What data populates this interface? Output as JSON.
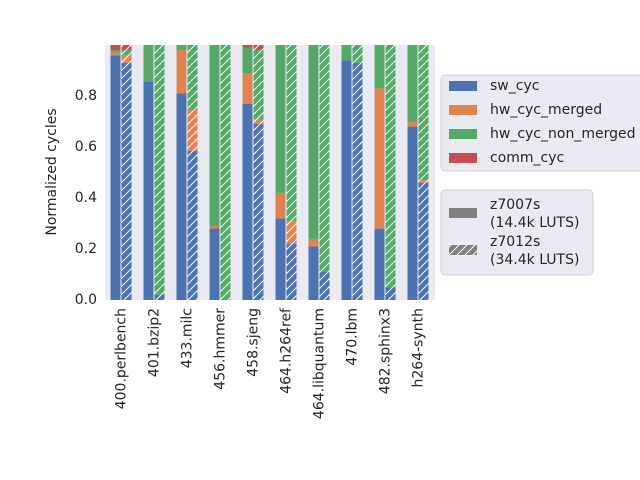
{
  "chart_data": {
    "type": "grouped_stacked_bar",
    "y_label": "Normalized cycles",
    "categories": [
      "400.perlbench",
      "401.bzip2",
      "433.milc",
      "456.hmmer",
      "458.sjeng",
      "464.h264ref",
      "464.libquantum",
      "470.lbm",
      "482.sphinx3",
      "h264-synth"
    ],
    "configs": [
      {
        "label": [
          "z7007s",
          "(14.4k LUTS)"
        ],
        "hatch": false,
        "color": "#808080"
      },
      {
        "label": [
          "z7012s",
          "(34.4k LUTS)"
        ],
        "hatch": true,
        "color": "#808080"
      }
    ],
    "series": [
      {
        "name": "sw_cyc",
        "color": "#4c72b0",
        "values": [
          [
            0.96,
            0.855,
            0.81,
            0.28,
            0.77,
            0.32,
            0.21,
            0.94,
            0.28,
            0.68
          ],
          [
            0.93,
            0.02,
            0.585,
            0,
            0.69,
            0.22,
            0.11,
            0.93,
            0.05,
            0.46
          ]
        ]
      },
      {
        "name": "hw_cyc_merged",
        "color": "#dd8452",
        "values": [
          [
            0.01,
            0,
            0.17,
            0.01,
            0.12,
            0.1,
            0.03,
            0,
            0.55,
            0.02
          ],
          [
            0.03,
            0,
            0.16,
            0,
            0.02,
            0.09,
            0,
            0,
            0,
            0.01
          ]
        ]
      },
      {
        "name": "hw_cyc_non_merged",
        "color": "#55a868",
        "values": [
          [
            0.01,
            0.145,
            0.02,
            0.71,
            0.1,
            0.58,
            0.76,
            0.06,
            0.17,
            0.3
          ],
          [
            0.02,
            0.98,
            0.255,
            1.0,
            0.27,
            0.69,
            0.89,
            0.07,
            0.95,
            0.53
          ]
        ]
      },
      {
        "name": "comm_cyc",
        "color": "#c44e52",
        "values": [
          [
            0.02,
            0,
            0,
            0,
            0.01,
            0,
            0,
            0,
            0,
            0
          ],
          [
            0.02,
            0,
            0,
            0,
            0.02,
            0,
            0,
            0,
            0,
            0
          ]
        ]
      }
    ],
    "ylim": [
      0,
      1.0
    ],
    "yticks": [
      {
        "value": 0,
        "label": "0.0"
      },
      {
        "value": 0.2,
        "label": "0.2"
      },
      {
        "value": 0.4,
        "label": "0.4"
      },
      {
        "value": 0.6,
        "label": "0.6"
      },
      {
        "value": 0.8,
        "label": "0.8"
      }
    ],
    "grid": false
  }
}
